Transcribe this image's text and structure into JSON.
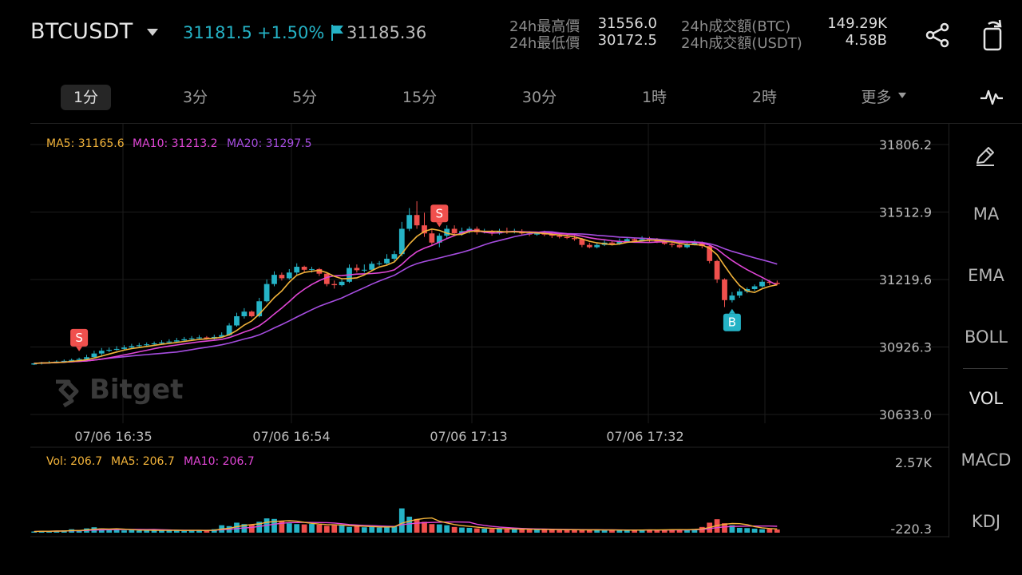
{
  "header": {
    "symbol": "BTCUSDT",
    "last_price": "31181.5",
    "change_pct": "+1.50%",
    "mark_price": "31185.36",
    "stats": {
      "high_label": "24h最高價",
      "high_value": "31556.0",
      "low_label": "24h最低價",
      "low_value": "30172.5",
      "vol_btc_label": "24h成交額(BTC)",
      "vol_btc_value": "149.29K",
      "vol_usdt_label": "24h成交額(USDT)",
      "vol_usdt_value": "4.58B"
    },
    "icons": [
      "caret-down-icon",
      "flag-icon",
      "share-icon",
      "rotate-screen-icon"
    ]
  },
  "timeframes": [
    "1分",
    "3分",
    "5分",
    "15分",
    "30分",
    "1時",
    "2時",
    "更多"
  ],
  "active_timeframe": "1分",
  "legend": {
    "ma5": "MA5: 31165.6",
    "ma10": "MA10: 31213.2",
    "ma20": "MA20: 31297.5",
    "vol": "Vol: 206.7",
    "vol_ma5": "MA5: 206.7",
    "vol_ma10": "MA10: 206.7"
  },
  "side_indicators": [
    "MA",
    "EMA",
    "BOLL",
    "VOL",
    "MACD",
    "KDJ"
  ],
  "watermark": "Bitget",
  "colors": {
    "up": "#25b3c6",
    "down": "#f0504d",
    "ma5": "#f2b33a",
    "ma10": "#e046d6",
    "ma20": "#a64de0"
  },
  "chart_data": {
    "type": "candlestick",
    "price_axis": [
      "31806.2",
      "31512.9",
      "31219.6",
      "30926.3",
      "30633.0"
    ],
    "ylim": [
      30633.0,
      31806.2
    ],
    "time_labels": [
      "07/06 16:35",
      "07/06 16:54",
      "07/06 17:13",
      "07/06 17:32"
    ],
    "volume_axis": [
      "2.57K",
      "-220.3"
    ],
    "volume_ylim": [
      -220.3,
      2570
    ],
    "trade_markers": [
      {
        "label": "S",
        "candle": 6
      },
      {
        "label": "S",
        "candle": 54
      },
      {
        "label": "B",
        "candle": 93
      }
    ],
    "candles": [
      [
        30850,
        30855,
        30858,
        30848
      ],
      [
        30855,
        30858,
        30862,
        30850
      ],
      [
        30858,
        30860,
        30866,
        30854
      ],
      [
        30860,
        30863,
        30868,
        30856
      ],
      [
        30862,
        30866,
        30872,
        30858
      ],
      [
        30866,
        30870,
        30876,
        30862
      ],
      [
        30870,
        30874,
        30880,
        30864
      ],
      [
        30874,
        30882,
        30892,
        30870
      ],
      [
        30882,
        30898,
        30910,
        30880
      ],
      [
        30898,
        30910,
        30922,
        30890
      ],
      [
        30910,
        30914,
        30924,
        30904
      ],
      [
        30914,
        30918,
        30930,
        30910
      ],
      [
        30918,
        30924,
        30934,
        30914
      ],
      [
        30924,
        30930,
        30940,
        30920
      ],
      [
        30930,
        30934,
        30944,
        30926
      ],
      [
        30934,
        30938,
        30946,
        30930
      ],
      [
        30938,
        30942,
        30950,
        30934
      ],
      [
        30942,
        30946,
        30956,
        30938
      ],
      [
        30946,
        30950,
        30960,
        30942
      ],
      [
        30950,
        30955,
        30966,
        30946
      ],
      [
        30955,
        30960,
        30970,
        30950
      ],
      [
        30960,
        30964,
        30974,
        30956
      ],
      [
        30964,
        30968,
        30978,
        30960
      ],
      [
        30968,
        30962,
        30974,
        30958
      ],
      [
        30962,
        30970,
        30980,
        30958
      ],
      [
        30970,
        30978,
        30990,
        30966
      ],
      [
        30978,
        31020,
        31030,
        30975
      ],
      [
        31020,
        31060,
        31075,
        31015
      ],
      [
        31060,
        31080,
        31095,
        31050
      ],
      [
        31080,
        31060,
        31085,
        31055
      ],
      [
        31060,
        31125,
        31140,
        31055
      ],
      [
        31125,
        31200,
        31220,
        31120
      ],
      [
        31200,
        31240,
        31255,
        31190
      ],
      [
        31240,
        31225,
        31250,
        31215
      ],
      [
        31225,
        31250,
        31265,
        31220
      ],
      [
        31250,
        31275,
        31290,
        31240
      ],
      [
        31275,
        31262,
        31280,
        31250
      ],
      [
        31262,
        31265,
        31275,
        31250
      ],
      [
        31265,
        31245,
        31270,
        31235
      ],
      [
        31245,
        31200,
        31250,
        31190
      ],
      [
        31200,
        31195,
        31215,
        31180
      ],
      [
        31195,
        31210,
        31225,
        31190
      ],
      [
        31210,
        31270,
        31285,
        31205
      ],
      [
        31270,
        31260,
        31285,
        31250
      ],
      [
        31260,
        31262,
        31285,
        31250
      ],
      [
        31262,
        31288,
        31298,
        31255
      ],
      [
        31288,
        31290,
        31300,
        31280
      ],
      [
        31290,
        31310,
        31330,
        31285
      ],
      [
        31310,
        31330,
        31345,
        31300
      ],
      [
        31330,
        31440,
        31470,
        31320
      ],
      [
        31440,
        31500,
        31530,
        31430
      ],
      [
        31500,
        31455,
        31560,
        31440
      ],
      [
        31455,
        31420,
        31510,
        31405
      ],
      [
        31420,
        31380,
        31440,
        31370
      ],
      [
        31380,
        31410,
        31420,
        31360
      ],
      [
        31410,
        31440,
        31455,
        31395
      ],
      [
        31440,
        31420,
        31455,
        31410
      ],
      [
        31420,
        31430,
        31445,
        31410
      ],
      [
        31430,
        31440,
        31450,
        31420
      ],
      [
        31440,
        31425,
        31450,
        31415
      ],
      [
        31425,
        31430,
        31440,
        31420
      ],
      [
        31430,
        31420,
        31435,
        31410
      ],
      [
        31420,
        31430,
        31440,
        31415
      ],
      [
        31430,
        31425,
        31445,
        31418
      ],
      [
        31425,
        31430,
        31440,
        31420
      ],
      [
        31430,
        31420,
        31438,
        31412
      ],
      [
        31420,
        31415,
        31430,
        31408
      ],
      [
        31415,
        31420,
        31428,
        31410
      ],
      [
        31420,
        31415,
        31432,
        31408
      ],
      [
        31415,
        31410,
        31425,
        31400
      ],
      [
        31410,
        31405,
        31420,
        31398
      ],
      [
        31405,
        31400,
        31415,
        31395
      ],
      [
        31400,
        31395,
        31410,
        31388
      ],
      [
        31395,
        31370,
        31400,
        31360
      ],
      [
        31370,
        31360,
        31380,
        31355
      ],
      [
        31360,
        31370,
        31380,
        31355
      ],
      [
        31370,
        31380,
        31392,
        31365
      ],
      [
        31380,
        31375,
        31390,
        31368
      ],
      [
        31375,
        31385,
        31398,
        31370
      ],
      [
        31385,
        31395,
        31405,
        31380
      ],
      [
        31395,
        31388,
        31402,
        31380
      ],
      [
        31388,
        31395,
        31408,
        31385
      ],
      [
        31395,
        31390,
        31405,
        31383
      ],
      [
        31390,
        31385,
        31400,
        31378
      ],
      [
        31385,
        31375,
        31392,
        31370
      ],
      [
        31375,
        31370,
        31385,
        31360
      ],
      [
        31370,
        31360,
        31378,
        31355
      ],
      [
        31360,
        31372,
        31382,
        31355
      ],
      [
        31372,
        31380,
        31392,
        31368
      ],
      [
        31380,
        31365,
        31385,
        31355
      ],
      [
        31365,
        31300,
        31370,
        31290
      ],
      [
        31300,
        31220,
        31305,
        31205
      ],
      [
        31220,
        31130,
        31225,
        31100
      ],
      [
        31130,
        31150,
        31165,
        31120
      ],
      [
        31150,
        31168,
        31180,
        31140
      ],
      [
        31168,
        31178,
        31185,
        31160
      ],
      [
        31178,
        31190,
        31198,
        31170
      ],
      [
        31190,
        31210,
        31220,
        31185
      ],
      [
        31210,
        31205,
        31218,
        31195
      ],
      [
        31205,
        31200,
        31215,
        31195
      ]
    ],
    "volume": [
      40,
      60,
      50,
      70,
      80,
      120,
      60,
      150,
      190,
      150,
      90,
      110,
      80,
      100,
      70,
      90,
      80,
      70,
      100,
      80,
      60,
      90,
      70,
      90,
      120,
      260,
      230,
      350,
      300,
      280,
      380,
      500,
      480,
      400,
      330,
      300,
      290,
      310,
      280,
      240,
      260,
      250,
      200,
      230,
      190,
      210,
      180,
      200,
      220,
      850,
      560,
      480,
      380,
      300,
      290,
      260,
      200,
      180,
      170,
      150,
      140,
      130,
      140,
      120,
      130,
      110,
      110,
      100,
      120,
      110,
      90,
      100,
      90,
      110,
      100,
      90,
      80,
      100,
      90,
      80,
      90,
      100,
      110,
      90,
      100,
      120,
      110,
      100,
      130,
      200,
      350,
      470,
      330,
      260,
      170,
      160,
      140,
      120,
      130,
      110
    ]
  }
}
